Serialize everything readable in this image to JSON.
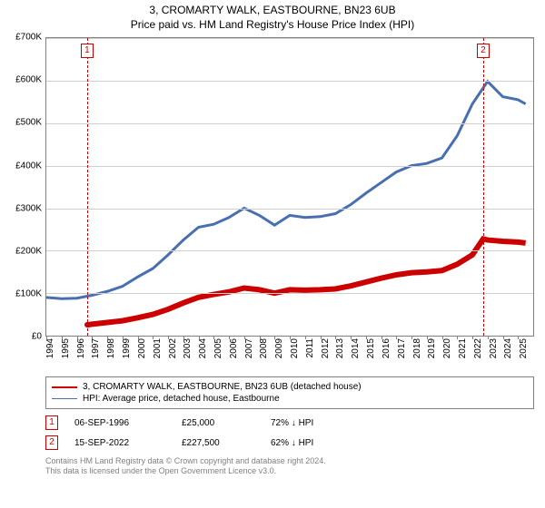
{
  "title": "3, CROMARTY WALK, EASTBOURNE, BN23 6UB",
  "subtitle": "Price paid vs. HM Land Registry's House Price Index (HPI)",
  "chart": {
    "type": "line",
    "background_color": "#ffffff",
    "border_color": "#808080",
    "grid_color": "#d0d0d0",
    "xlim": [
      1994,
      2026
    ],
    "ylim": [
      0,
      700000
    ],
    "ytick_step": 100000,
    "yticks": [
      "£0",
      "£100K",
      "£200K",
      "£300K",
      "£400K",
      "£500K",
      "£600K",
      "£700K"
    ],
    "xticks": [
      1994,
      1995,
      1996,
      1997,
      1998,
      1999,
      2000,
      2001,
      2002,
      2003,
      2004,
      2005,
      2006,
      2007,
      2008,
      2009,
      2010,
      2011,
      2012,
      2013,
      2014,
      2015,
      2016,
      2017,
      2018,
      2019,
      2020,
      2021,
      2022,
      2023,
      2024,
      2025
    ],
    "label_fontsize": 10,
    "line_width_red": 2,
    "line_width_blue": 1,
    "series": {
      "red": {
        "color": "#cc0000",
        "label": "3, CROMARTY WALK, EASTBOURNE, BN23 6UB (detached house)",
        "points": [
          [
            1996.68,
            25000
          ],
          [
            1997,
            27000
          ],
          [
            1998,
            31000
          ],
          [
            1999,
            35000
          ],
          [
            2000,
            42000
          ],
          [
            2001,
            50000
          ],
          [
            2002,
            62000
          ],
          [
            2003,
            77000
          ],
          [
            2004,
            90000
          ],
          [
            2005,
            97000
          ],
          [
            2006,
            103000
          ],
          [
            2007,
            112000
          ],
          [
            2008,
            108000
          ],
          [
            2009,
            100000
          ],
          [
            2010,
            108000
          ],
          [
            2011,
            107000
          ],
          [
            2012,
            108000
          ],
          [
            2013,
            110000
          ],
          [
            2014,
            117000
          ],
          [
            2015,
            126000
          ],
          [
            2016,
            135000
          ],
          [
            2017,
            143000
          ],
          [
            2018,
            148000
          ],
          [
            2019,
            150000
          ],
          [
            2020,
            153000
          ],
          [
            2021,
            168000
          ],
          [
            2022,
            190000
          ],
          [
            2022.71,
            227500
          ],
          [
            2023,
            225000
          ],
          [
            2024,
            222000
          ],
          [
            2025,
            220000
          ],
          [
            2025.5,
            218000
          ]
        ]
      },
      "blue": {
        "color": "#4a6fb0",
        "label": "HPI: Average price, detached house, Eastbourne",
        "points": [
          [
            1994,
            90000
          ],
          [
            1995,
            87000
          ],
          [
            1996,
            88000
          ],
          [
            1997,
            95000
          ],
          [
            1998,
            104000
          ],
          [
            1999,
            116000
          ],
          [
            2000,
            138000
          ],
          [
            2001,
            158000
          ],
          [
            2002,
            190000
          ],
          [
            2003,
            225000
          ],
          [
            2004,
            255000
          ],
          [
            2005,
            262000
          ],
          [
            2006,
            278000
          ],
          [
            2007,
            300000
          ],
          [
            2008,
            283000
          ],
          [
            2009,
            260000
          ],
          [
            2010,
            283000
          ],
          [
            2011,
            278000
          ],
          [
            2012,
            280000
          ],
          [
            2013,
            287000
          ],
          [
            2014,
            308000
          ],
          [
            2015,
            335000
          ],
          [
            2016,
            360000
          ],
          [
            2017,
            385000
          ],
          [
            2018,
            400000
          ],
          [
            2019,
            405000
          ],
          [
            2020,
            418000
          ],
          [
            2021,
            470000
          ],
          [
            2022,
            545000
          ],
          [
            2023,
            598000
          ],
          [
            2024,
            562000
          ],
          [
            2025,
            555000
          ],
          [
            2025.5,
            545000
          ]
        ]
      }
    },
    "markers": [
      {
        "n": "1",
        "x": 1996.68,
        "y": 25000,
        "color": "#cc0000"
      },
      {
        "n": "2",
        "x": 2022.71,
        "y": 227500,
        "color": "#cc0000"
      }
    ]
  },
  "legend": {
    "items": [
      {
        "color": "#cc0000",
        "width": 2,
        "label_key": "chart.series.red.label"
      },
      {
        "color": "#4a6fb0",
        "width": 1,
        "label_key": "chart.series.blue.label"
      }
    ]
  },
  "transactions": [
    {
      "n": "1",
      "color": "#cc0000",
      "date": "06-SEP-1996",
      "price": "£25,000",
      "delta": "72% ↓ HPI"
    },
    {
      "n": "2",
      "color": "#cc0000",
      "date": "15-SEP-2022",
      "price": "£227,500",
      "delta": "62% ↓ HPI"
    }
  ],
  "footnote": {
    "line1": "Contains HM Land Registry data © Crown copyright and database right 2024.",
    "line2": "This data is licensed under the Open Government Licence v3.0.",
    "color": "#808080"
  }
}
